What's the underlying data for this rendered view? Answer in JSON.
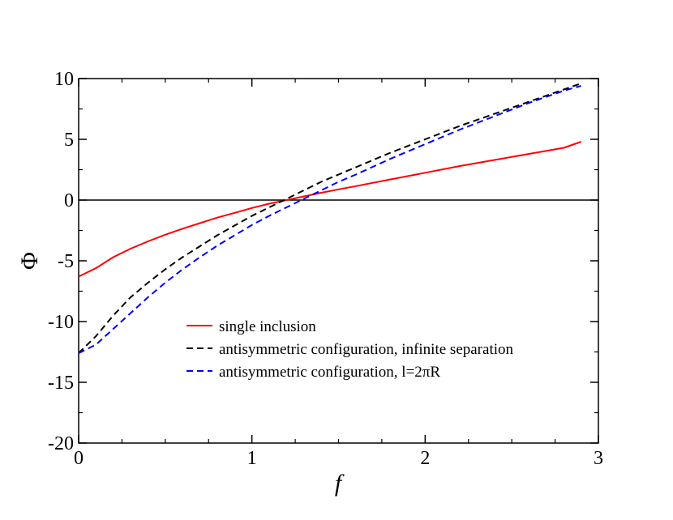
{
  "chart_data": {
    "type": "line",
    "title": "",
    "xlabel": "f",
    "ylabel": "Φ",
    "xlim": [
      0,
      3
    ],
    "ylim": [
      -20,
      10
    ],
    "xticks": [
      0,
      1,
      2,
      3
    ],
    "xtick_labels": [
      "0",
      "1",
      "2",
      "3"
    ],
    "yticks": [
      -20,
      -15,
      -10,
      -5,
      0,
      5,
      10
    ],
    "ytick_labels": [
      "-20",
      "-15",
      "-10",
      "-5",
      "0",
      "5",
      "10"
    ],
    "grid": false,
    "zero_line": true,
    "legend_position": "center-right",
    "series": [
      {
        "name": "single inclusion",
        "legend_label": "single inclusion",
        "color": "#ff0000",
        "dash": "solid",
        "x": [
          0,
          0.1,
          0.2,
          0.3,
          0.4,
          0.5,
          0.6,
          0.7,
          0.8,
          0.9,
          1.0,
          1.1,
          1.2,
          1.3,
          1.4,
          1.5,
          1.6,
          1.8,
          2.0,
          2.2,
          2.4,
          2.6,
          2.8,
          2.9
        ],
        "y": [
          -6.3,
          -5.6,
          -4.7,
          -4.0,
          -3.4,
          -2.85,
          -2.35,
          -1.9,
          -1.45,
          -1.05,
          -0.65,
          -0.3,
          0.0,
          0.3,
          0.6,
          0.88,
          1.15,
          1.7,
          2.25,
          2.8,
          3.3,
          3.8,
          4.3,
          4.8
        ]
      },
      {
        "name": "antisymmetric configuration, infinite separation",
        "legend_label": "antisymmetric configuration, infinite separation",
        "color": "#000000",
        "dash": "dashed",
        "x": [
          0,
          0.1,
          0.2,
          0.3,
          0.4,
          0.5,
          0.6,
          0.7,
          0.8,
          0.9,
          1.0,
          1.1,
          1.2,
          1.3,
          1.4,
          1.5,
          1.6,
          1.8,
          2.0,
          2.2,
          2.4,
          2.6,
          2.8,
          2.9
        ],
        "y": [
          -12.6,
          -11.2,
          -9.5,
          -8.0,
          -6.8,
          -5.7,
          -4.7,
          -3.8,
          -2.9,
          -2.1,
          -1.3,
          -0.6,
          0.1,
          0.8,
          1.5,
          2.1,
          2.7,
          3.9,
          5.0,
          6.1,
          7.1,
          8.1,
          9.1,
          9.6
        ]
      },
      {
        "name": "antisymmetric configuration, l=2πR",
        "legend_label": "antisymmetric configuration, l=2πR",
        "color": "#0000ff",
        "dash": "dashed",
        "x": [
          0,
          0.1,
          0.2,
          0.3,
          0.4,
          0.5,
          0.6,
          0.7,
          0.8,
          0.9,
          1.0,
          1.1,
          1.2,
          1.3,
          1.4,
          1.5,
          1.6,
          1.8,
          2.0,
          2.2,
          2.4,
          2.6,
          2.8,
          2.9
        ],
        "y": [
          -12.6,
          -11.9,
          -10.6,
          -9.3,
          -8.0,
          -6.8,
          -5.7,
          -4.7,
          -3.75,
          -2.9,
          -2.05,
          -1.3,
          -0.6,
          0.1,
          0.8,
          1.5,
          2.1,
          3.4,
          4.6,
          5.8,
          6.9,
          8.0,
          9.0,
          9.4
        ]
      }
    ]
  }
}
